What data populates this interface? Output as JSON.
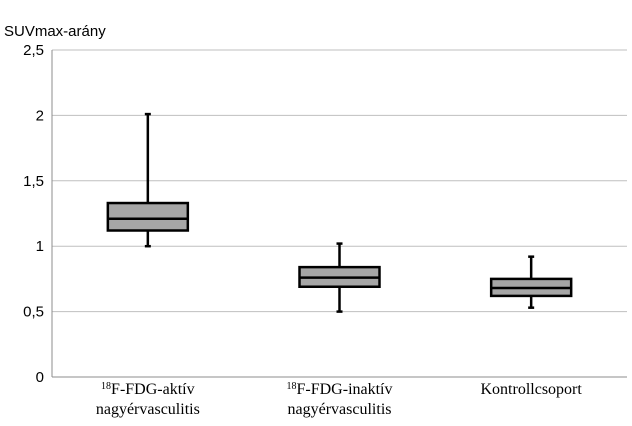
{
  "chart_data": {
    "type": "box",
    "ylabel": "SUVmax-arány",
    "ylim": [
      0,
      2.5
    ],
    "yticks": [
      {
        "value": 0,
        "label": "0"
      },
      {
        "value": 0.5,
        "label": "0,5"
      },
      {
        "value": 1,
        "label": "1"
      },
      {
        "value": 1.5,
        "label": "1,5"
      },
      {
        "value": 2,
        "label": "2"
      },
      {
        "value": 2.5,
        "label": "2,5"
      }
    ],
    "grid": true,
    "categories": [
      {
        "sup": "18",
        "line1": "F-FDG-aktív",
        "line2": "nagyérvasculitis"
      },
      {
        "sup": "18",
        "line1": "F-FDG-inaktív",
        "line2": "nagyérvasculitis"
      },
      {
        "sup": "",
        "line1": "Kontrollcsoport",
        "line2": ""
      }
    ],
    "boxes": [
      {
        "min": 1.0,
        "q1": 1.12,
        "median": 1.21,
        "q3": 1.33,
        "max": 2.01
      },
      {
        "min": 0.5,
        "q1": 0.69,
        "median": 0.76,
        "q3": 0.84,
        "max": 1.02
      },
      {
        "min": 0.53,
        "q1": 0.62,
        "median": 0.68,
        "q3": 0.75,
        "max": 0.92
      }
    ],
    "colors": {
      "box_fill": "#a6a6a6",
      "stroke": "#000000",
      "grid": "#bfbfbf"
    }
  }
}
